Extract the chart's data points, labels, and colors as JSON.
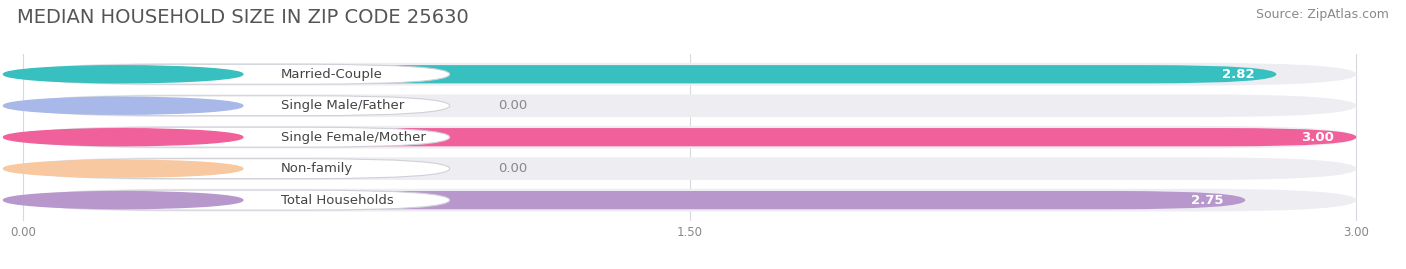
{
  "title": "MEDIAN HOUSEHOLD SIZE IN ZIP CODE 25630",
  "source": "Source: ZipAtlas.com",
  "categories": [
    "Married-Couple",
    "Single Male/Father",
    "Single Female/Mother",
    "Non-family",
    "Total Households"
  ],
  "values": [
    2.82,
    0.0,
    3.0,
    0.0,
    2.75
  ],
  "bar_colors": [
    "#38bfbf",
    "#a8b8e8",
    "#f0609a",
    "#f8c8a0",
    "#b898cc"
  ],
  "bar_bg_color": "#ededf2",
  "xlim_max": 3.0,
  "xticks": [
    0.0,
    1.5,
    3.0
  ],
  "xtick_labels": [
    "0.00",
    "1.50",
    "3.00"
  ],
  "title_fontsize": 14,
  "source_fontsize": 9,
  "label_fontsize": 9.5,
  "value_fontsize": 9.5,
  "background_color": "#ffffff",
  "grid_color": "#d8d8e0",
  "label_box_color": "#ffffff",
  "label_text_color": "#444444",
  "value_text_color": "#ffffff",
  "zero_value_text_color": "#888888"
}
